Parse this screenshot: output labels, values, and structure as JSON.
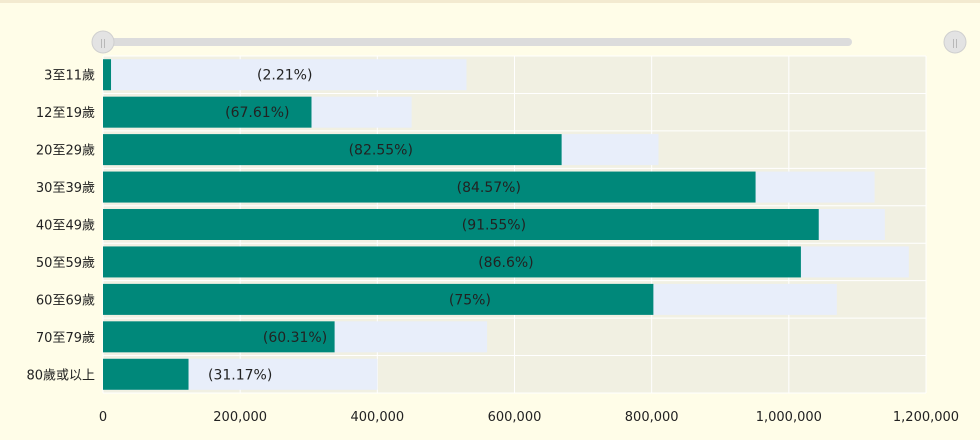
{
  "chart_data": {
    "type": "bar",
    "orientation": "horizontal",
    "stacking": "overlay",
    "categories": [
      "3至11歲",
      "12至19歲",
      "20至29歲",
      "30至39歲",
      "40至49歲",
      "50至59歲",
      "60至69歲",
      "70至79歲",
      "80歲或以上"
    ],
    "series": [
      {
        "values": [
          530000,
          450000,
          810000,
          1125000,
          1140000,
          1175000,
          1070000,
          560000,
          400000
        ]
      },
      {
        "values": [
          11700,
          304000,
          668700,
          951500,
          1043600,
          1017600,
          802500,
          337700,
          124700
        ]
      }
    ],
    "data_labels": [
      "(2.21%)",
      "(67.61%)",
      "(82.55%)",
      "(84.57%)",
      "(91.55%)",
      "(86.6%)",
      "(75%)",
      "(60.31%)",
      "(31.17%)"
    ],
    "x_ticks": [
      "0",
      "200,000",
      "400,000",
      "600,000",
      "800,000",
      "1,000,000",
      "1,200,000"
    ],
    "xlim": [
      0,
      1200000
    ],
    "grid": true,
    "legend": "none",
    "colors": {
      "filled": "#00887a",
      "total": "#e8eefa",
      "plot_bg": "#f1f0e2",
      "slider_track": "#dcdcdc",
      "slider_handle": "#e3e3e3"
    }
  },
  "slider": {
    "handles": [
      "||",
      "||"
    ]
  }
}
